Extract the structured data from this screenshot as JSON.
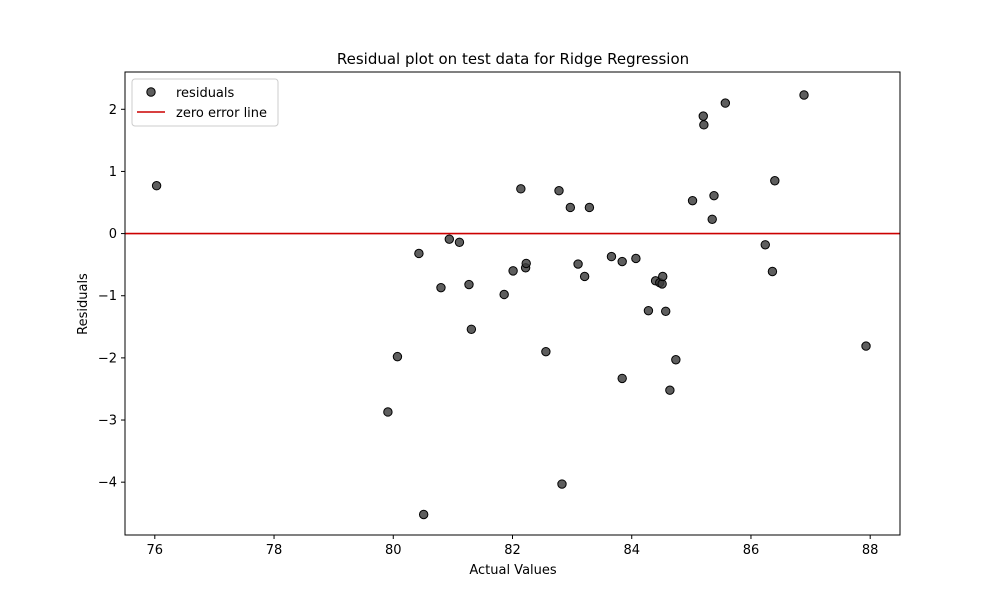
{
  "chart_data": {
    "type": "scatter",
    "title": "Residual plot on test data for Ridge Regression",
    "xlabel": "Actual Values",
    "ylabel": "Residuals",
    "xlim": [
      75.5,
      88.5
    ],
    "ylim": [
      -4.85,
      2.6
    ],
    "xticks": [
      76,
      78,
      80,
      82,
      84,
      86,
      88
    ],
    "xtick_labels": [
      "76",
      "78",
      "80",
      "82",
      "84",
      "86",
      "88"
    ],
    "yticks": [
      2,
      1,
      0,
      -1,
      -2,
      -3,
      -4
    ],
    "ytick_labels": [
      "2",
      "1",
      "0",
      "−1",
      "−2",
      "−3",
      "−4"
    ],
    "legend": {
      "location": "upper-left",
      "entries": [
        {
          "label": "residuals",
          "kind": "marker"
        },
        {
          "label": "zero error line",
          "kind": "line"
        }
      ]
    },
    "colors": {
      "points": "#3a3a3a",
      "point_edge": "#000000",
      "zero_line": "#cc0000"
    },
    "zero_line_y": 0,
    "points": [
      {
        "x": 76.03,
        "y": 0.77
      },
      {
        "x": 79.91,
        "y": -2.87
      },
      {
        "x": 80.07,
        "y": -1.98
      },
      {
        "x": 80.43,
        "y": -0.32
      },
      {
        "x": 80.51,
        "y": -4.52
      },
      {
        "x": 80.8,
        "y": -0.87
      },
      {
        "x": 80.94,
        "y": -0.09
      },
      {
        "x": 81.11,
        "y": -0.14
      },
      {
        "x": 81.27,
        "y": -0.82
      },
      {
        "x": 81.31,
        "y": -1.54
      },
      {
        "x": 81.86,
        "y": -0.98
      },
      {
        "x": 82.01,
        "y": -0.6
      },
      {
        "x": 82.14,
        "y": 0.72
      },
      {
        "x": 82.22,
        "y": -0.55
      },
      {
        "x": 82.23,
        "y": -0.48
      },
      {
        "x": 82.56,
        "y": -1.9
      },
      {
        "x": 82.78,
        "y": 0.69
      },
      {
        "x": 82.83,
        "y": -4.03
      },
      {
        "x": 82.97,
        "y": 0.42
      },
      {
        "x": 83.1,
        "y": -0.49
      },
      {
        "x": 83.21,
        "y": -0.69
      },
      {
        "x": 83.29,
        "y": 0.42
      },
      {
        "x": 83.66,
        "y": -0.37
      },
      {
        "x": 83.84,
        "y": -0.45
      },
      {
        "x": 83.84,
        "y": -2.33
      },
      {
        "x": 84.07,
        "y": -0.4
      },
      {
        "x": 84.28,
        "y": -1.24
      },
      {
        "x": 84.4,
        "y": -0.76
      },
      {
        "x": 84.47,
        "y": -0.79
      },
      {
        "x": 84.51,
        "y": -0.81
      },
      {
        "x": 84.52,
        "y": -0.69
      },
      {
        "x": 84.57,
        "y": -1.25
      },
      {
        "x": 84.64,
        "y": -2.52
      },
      {
        "x": 84.74,
        "y": -2.03
      },
      {
        "x": 85.02,
        "y": 0.53
      },
      {
        "x": 85.2,
        "y": 1.89
      },
      {
        "x": 85.21,
        "y": 1.75
      },
      {
        "x": 85.35,
        "y": 0.23
      },
      {
        "x": 85.38,
        "y": 0.61
      },
      {
        "x": 85.57,
        "y": 2.1
      },
      {
        "x": 86.24,
        "y": -0.18
      },
      {
        "x": 86.36,
        "y": -0.61
      },
      {
        "x": 86.4,
        "y": 0.85
      },
      {
        "x": 86.89,
        "y": 2.23
      },
      {
        "x": 87.93,
        "y": -1.81
      }
    ]
  }
}
